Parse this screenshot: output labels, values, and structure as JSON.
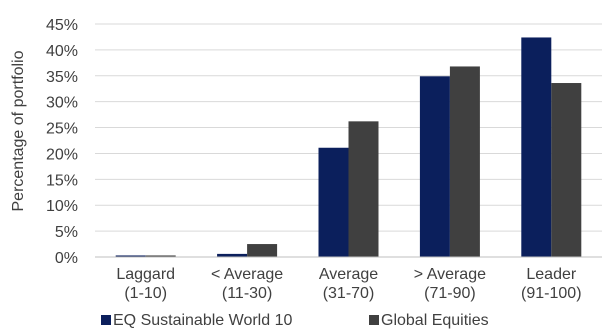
{
  "chart_data": {
    "type": "bar",
    "title": "",
    "xlabel": "",
    "ylabel": "Percentage of portfolio",
    "categories": [
      [
        "Laggard",
        "(1-10)"
      ],
      [
        "< Average",
        "(11-30)"
      ],
      [
        "Average",
        "(31-70)"
      ],
      [
        "> Average",
        "(71-90)"
      ],
      [
        "Leader",
        "(91-100)"
      ]
    ],
    "series": [
      {
        "name": "EQ Sustainable World 10",
        "color": "#0b1f5c",
        "values": [
          0.3,
          0.6,
          21.1,
          34.9,
          42.4
        ]
      },
      {
        "name": "Global Equities",
        "color": "#404040",
        "values": [
          0.3,
          2.5,
          26.2,
          36.8,
          33.6
        ]
      }
    ],
    "ylim": [
      0,
      45
    ],
    "yticks": [
      0,
      5,
      10,
      15,
      20,
      25,
      30,
      35,
      40,
      45
    ],
    "ytick_labels": [
      "0%",
      "5%",
      "10%",
      "15%",
      "20%",
      "25%",
      "30%",
      "35%",
      "40%",
      "45%"
    ],
    "grid": true,
    "legend_position": "bottom-left"
  }
}
